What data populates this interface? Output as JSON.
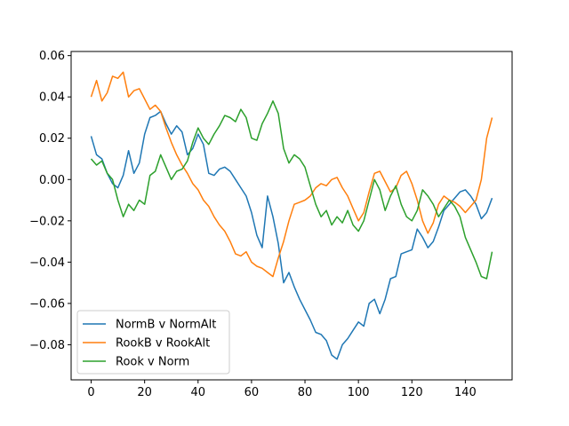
{
  "chart_data": {
    "type": "line",
    "title": "",
    "xlabel": "",
    "ylabel": "",
    "xlim": [
      -7.5,
      157.5
    ],
    "ylim": [
      -0.097,
      0.062
    ],
    "xticks": [
      0,
      20,
      40,
      60,
      80,
      100,
      120,
      140
    ],
    "yticks": [
      -0.08,
      -0.06,
      -0.04,
      -0.02,
      0.0,
      0.02,
      0.04,
      0.06
    ],
    "ytick_labels": [
      "−0.08",
      "−0.06",
      "−0.04",
      "−0.02",
      "0.00",
      "0.02",
      "0.04",
      "0.06"
    ],
    "grid": false,
    "legend_position": "lower-left",
    "series": [
      {
        "name": "NormB v NormAlt",
        "color": "#1f77b4",
        "x": [
          0,
          2,
          4,
          6,
          8,
          10,
          12,
          14,
          16,
          18,
          20,
          22,
          24,
          26,
          28,
          30,
          32,
          34,
          36,
          38,
          40,
          42,
          44,
          46,
          48,
          50,
          52,
          54,
          56,
          58,
          60,
          62,
          64,
          66,
          68,
          70,
          72,
          74,
          76,
          78,
          80,
          82,
          84,
          86,
          88,
          90,
          92,
          94,
          96,
          98,
          100,
          102,
          104,
          106,
          108,
          110,
          112,
          114,
          116,
          118,
          120,
          122,
          124,
          126,
          128,
          130,
          132,
          134,
          136,
          138,
          140,
          142,
          144,
          146,
          148,
          150
        ],
        "y": [
          0.021,
          0.012,
          0.01,
          0.003,
          -0.002,
          -0.004,
          0.002,
          0.014,
          0.003,
          0.008,
          0.022,
          0.03,
          0.031,
          0.033,
          0.027,
          0.022,
          0.026,
          0.023,
          0.012,
          0.015,
          0.022,
          0.017,
          0.003,
          0.002,
          0.005,
          0.006,
          0.004,
          0.0,
          -0.004,
          -0.008,
          -0.016,
          -0.027,
          -0.033,
          -0.008,
          -0.018,
          -0.031,
          -0.05,
          -0.045,
          -0.052,
          -0.058,
          -0.063,
          -0.068,
          -0.074,
          -0.075,
          -0.078,
          -0.085,
          -0.087,
          -0.08,
          -0.077,
          -0.073,
          -0.069,
          -0.071,
          -0.06,
          -0.058,
          -0.065,
          -0.058,
          -0.048,
          -0.047,
          -0.036,
          -0.035,
          -0.034,
          -0.024,
          -0.028,
          -0.033,
          -0.03,
          -0.023,
          -0.015,
          -0.012,
          -0.009,
          -0.006,
          -0.005,
          -0.008,
          -0.012,
          -0.019,
          -0.016,
          -0.009
        ]
      },
      {
        "name": "RookB v RookAlt",
        "color": "#ff7f0e",
        "x": [
          0,
          2,
          4,
          6,
          8,
          10,
          12,
          14,
          16,
          18,
          20,
          22,
          24,
          26,
          28,
          30,
          32,
          34,
          36,
          38,
          40,
          42,
          44,
          46,
          48,
          50,
          52,
          54,
          56,
          58,
          60,
          62,
          64,
          66,
          68,
          70,
          72,
          74,
          76,
          78,
          80,
          82,
          84,
          86,
          88,
          90,
          92,
          94,
          96,
          98,
          100,
          102,
          104,
          106,
          108,
          110,
          112,
          114,
          116,
          118,
          120,
          122,
          124,
          126,
          128,
          130,
          132,
          134,
          136,
          138,
          140,
          142,
          144,
          146,
          148,
          150
        ],
        "y": [
          0.04,
          0.048,
          0.038,
          0.042,
          0.05,
          0.049,
          0.052,
          0.04,
          0.043,
          0.044,
          0.039,
          0.034,
          0.036,
          0.033,
          0.025,
          0.018,
          0.012,
          0.007,
          0.003,
          -0.002,
          -0.005,
          -0.01,
          -0.013,
          -0.018,
          -0.022,
          -0.025,
          -0.03,
          -0.036,
          -0.037,
          -0.035,
          -0.04,
          -0.042,
          -0.043,
          -0.045,
          -0.047,
          -0.038,
          -0.03,
          -0.02,
          -0.012,
          -0.011,
          -0.01,
          -0.008,
          -0.004,
          -0.002,
          -0.003,
          0.0,
          0.001,
          -0.004,
          -0.008,
          -0.014,
          -0.02,
          -0.016,
          -0.006,
          0.003,
          0.004,
          -0.001,
          -0.006,
          -0.004,
          0.002,
          0.004,
          -0.002,
          -0.01,
          -0.02,
          -0.026,
          -0.021,
          -0.012,
          -0.008,
          -0.01,
          -0.011,
          -0.013,
          -0.016,
          -0.013,
          -0.01,
          0.0,
          0.02,
          0.03
        ]
      },
      {
        "name": "Rook v Norm",
        "color": "#2ca02c",
        "x": [
          0,
          2,
          4,
          6,
          8,
          10,
          12,
          14,
          16,
          18,
          20,
          22,
          24,
          26,
          28,
          30,
          32,
          34,
          36,
          38,
          40,
          42,
          44,
          46,
          48,
          50,
          52,
          54,
          56,
          58,
          60,
          62,
          64,
          66,
          68,
          70,
          72,
          74,
          76,
          78,
          80,
          82,
          84,
          86,
          88,
          90,
          92,
          94,
          96,
          98,
          100,
          102,
          104,
          106,
          108,
          110,
          112,
          114,
          116,
          118,
          120,
          122,
          124,
          126,
          128,
          130,
          132,
          134,
          136,
          138,
          140,
          142,
          144,
          146,
          148,
          150
        ],
        "y": [
          0.01,
          0.007,
          0.009,
          0.003,
          0.0,
          -0.01,
          -0.018,
          -0.012,
          -0.015,
          -0.01,
          -0.012,
          0.002,
          0.004,
          0.012,
          0.006,
          0.0,
          0.004,
          0.005,
          0.009,
          0.018,
          0.025,
          0.02,
          0.017,
          0.022,
          0.026,
          0.031,
          0.03,
          0.028,
          0.034,
          0.03,
          0.02,
          0.019,
          0.027,
          0.032,
          0.038,
          0.032,
          0.015,
          0.008,
          0.012,
          0.01,
          0.006,
          -0.003,
          -0.012,
          -0.018,
          -0.015,
          -0.022,
          -0.018,
          -0.021,
          -0.015,
          -0.022,
          -0.025,
          -0.02,
          -0.01,
          0.0,
          -0.005,
          -0.015,
          -0.008,
          -0.003,
          -0.012,
          -0.018,
          -0.02,
          -0.015,
          -0.005,
          -0.008,
          -0.012,
          -0.018,
          -0.014,
          -0.01,
          -0.013,
          -0.018,
          -0.028,
          -0.034,
          -0.04,
          -0.047,
          -0.048,
          -0.035
        ]
      }
    ]
  }
}
